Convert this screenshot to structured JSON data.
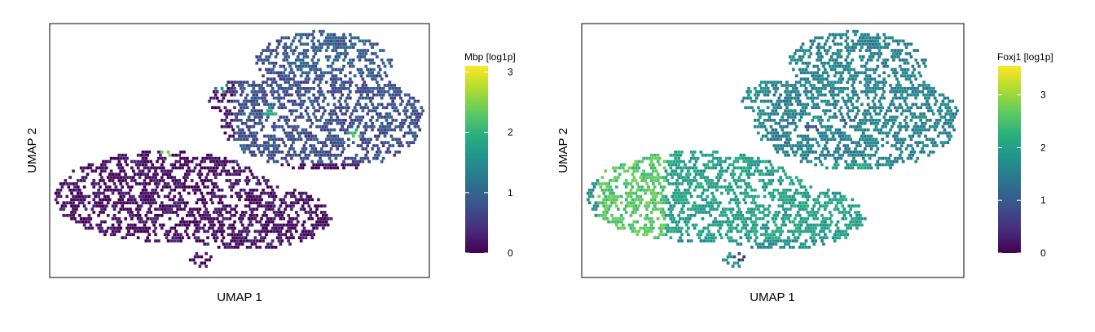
{
  "chart_data": [
    {
      "type": "scatter",
      "subtype": "hexbin-umap",
      "xlabel": "UMAP 1",
      "ylabel": "UMAP 2",
      "colorbar": {
        "title": "Mbp [log1p]",
        "ticks": [
          0,
          1,
          2,
          3
        ],
        "range": [
          0,
          3.1
        ],
        "colormap": "viridis"
      },
      "axis_ticks_shown": false,
      "grid": false,
      "background_level": 0.15,
      "regions": [
        {
          "name": "left-lower cluster",
          "x": [
            0.05,
            0.75
          ],
          "y": [
            0.15,
            0.55
          ],
          "level": 0.1
        },
        {
          "name": "upper-right cluster",
          "x": [
            0.48,
            0.98
          ],
          "y": [
            0.45,
            0.97
          ],
          "level": 0.75
        },
        {
          "name": "top-right edge",
          "x": [
            0.62,
            0.9
          ],
          "y": [
            0.8,
            0.97
          ],
          "level": 0.9
        }
      ],
      "hotspots": [
        {
          "x": 0.31,
          "y": 0.5,
          "value": 2.5
        },
        {
          "x": 0.58,
          "y": 0.65,
          "value": 1.8
        },
        {
          "x": 0.8,
          "y": 0.57,
          "value": 2.0
        },
        {
          "x": 0.45,
          "y": 0.75,
          "value": 1.5
        }
      ]
    },
    {
      "type": "scatter",
      "subtype": "hexbin-umap",
      "xlabel": "UMAP 1",
      "ylabel": "UMAP 2",
      "colorbar": {
        "title": "Foxj1 [log1p]",
        "ticks": [
          0,
          1,
          2,
          3
        ],
        "range": [
          0,
          3.55
        ],
        "colormap": "viridis"
      },
      "axis_ticks_shown": false,
      "grid": false,
      "background_level": 1.7,
      "regions": [
        {
          "name": "far-left cluster",
          "x": [
            0.04,
            0.22
          ],
          "y": [
            0.15,
            0.58
          ],
          "level": 2.6
        },
        {
          "name": "left-lower cluster",
          "x": [
            0.22,
            0.75
          ],
          "y": [
            0.15,
            0.55
          ],
          "level": 2.0
        },
        {
          "name": "upper-right cluster",
          "x": [
            0.48,
            0.98
          ],
          "y": [
            0.45,
            0.97
          ],
          "level": 1.55
        }
      ],
      "hotspots": [
        {
          "x": 0.41,
          "y": 0.08,
          "value": 0.6
        },
        {
          "x": 0.6,
          "y": 0.58,
          "value": 0.9
        },
        {
          "x": 0.7,
          "y": 0.62,
          "value": 1.0
        },
        {
          "x": 0.11,
          "y": 0.48,
          "value": 3.0
        }
      ]
    }
  ]
}
